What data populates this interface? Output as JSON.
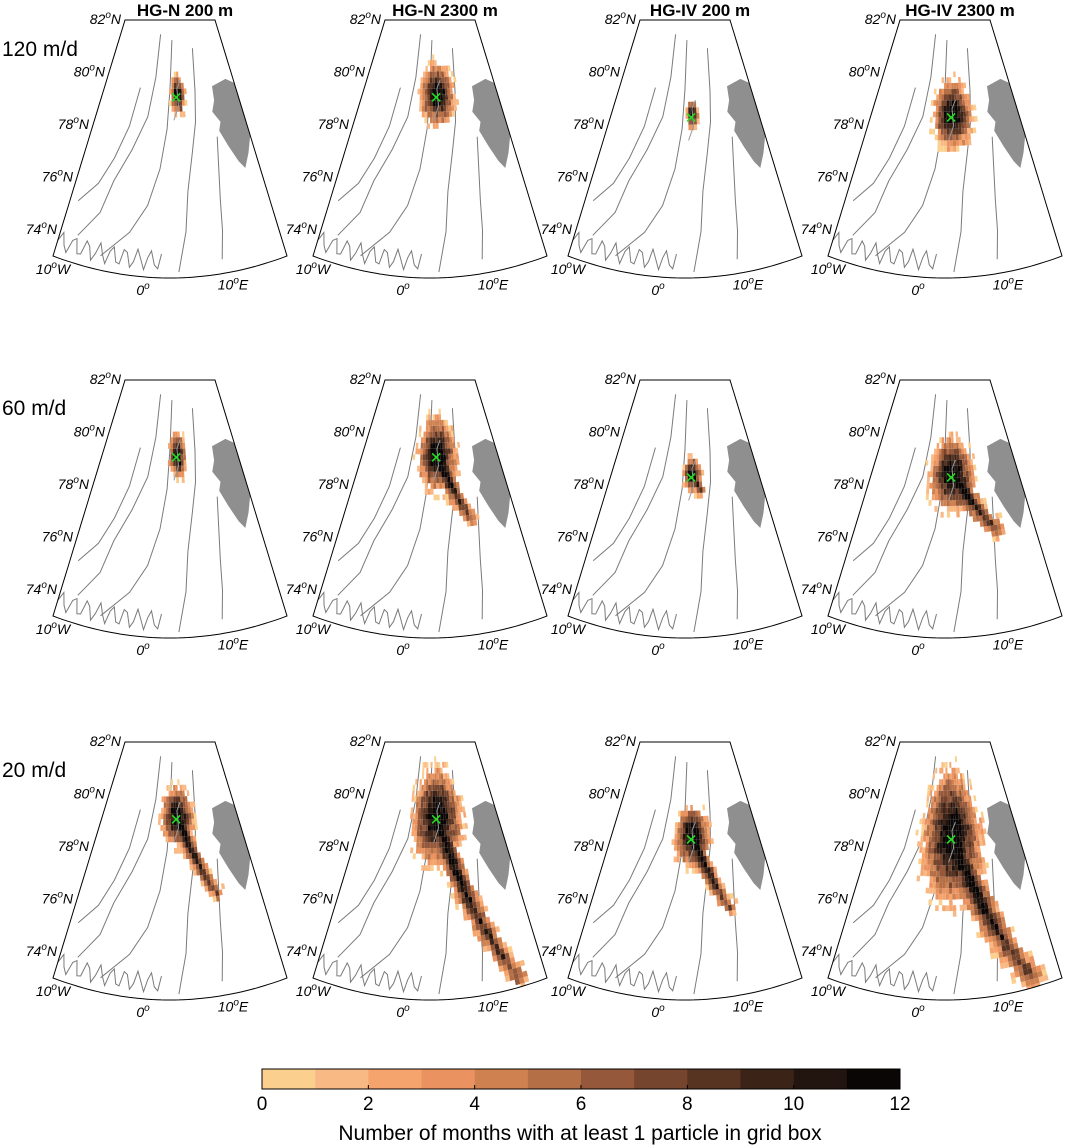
{
  "chart_data": {
    "type": "heatmap",
    "description_text": {
      "columns": [
        "HG-N 200 m",
        "HG-N 2300 m",
        "HG-IV 200 m",
        "HG-IV 2300 m"
      ],
      "rows": [
        "120 m/d",
        "60 m/d",
        "20 m/d"
      ]
    },
    "map_ticks": {
      "lat": [
        "82",
        "80",
        "78",
        "76",
        "74"
      ],
      "lat_suffix": "N",
      "lon": [
        "10",
        "0",
        "10"
      ],
      "lon_suffix": [
        "W",
        "",
        "E"
      ],
      "degree": "o"
    },
    "extent": {
      "lon": [
        -10,
        16
      ],
      "lat": [
        73,
        82
      ]
    },
    "release_sites": {
      "HG-N": {
        "lon": 4.2,
        "lat": 79.3
      },
      "HG-IV": {
        "lon": 4.1,
        "lat": 78.6
      }
    },
    "colorbar": {
      "ticks": [
        "0",
        "2",
        "4",
        "6",
        "8",
        "10",
        "12"
      ],
      "range": [
        0,
        12
      ],
      "label": "Number of months with at least 1 particle in grid box",
      "colors": [
        "#fbd08f",
        "#f9b985",
        "#f6a46e",
        "#ea9360",
        "#cf8150",
        "#b56f46",
        "#95583a",
        "#75452d",
        "#573322",
        "#3c2318",
        "#22140e",
        "#0a0605"
      ]
    },
    "panels": [
      {
        "site": "HG-N",
        "depth": "200 m",
        "speed": "120 m/d",
        "spread": {
          "dlon": 1.4,
          "dlat": 0.6,
          "tail_lon": 0.6,
          "tail_lat": -0.5
        }
      },
      {
        "site": "HG-N",
        "depth": "2300 m",
        "speed": "120 m/d",
        "spread": {
          "dlon": 3.2,
          "dlat": 1.0,
          "tail_lon": 1.5,
          "tail_lat": -0.7
        }
      },
      {
        "site": "HG-IV",
        "depth": "200 m",
        "speed": "120 m/d",
        "spread": {
          "dlon": 1.0,
          "dlat": 0.45,
          "tail_lon": 0.2,
          "tail_lat": -0.2
        }
      },
      {
        "site": "HG-IV",
        "depth": "2300 m",
        "speed": "120 m/d",
        "spread": {
          "dlon": 3.3,
          "dlat": 1.1,
          "tail_lon": 1.0,
          "tail_lat": -0.7
        }
      },
      {
        "site": "HG-N",
        "depth": "200 m",
        "speed": "60 m/d",
        "spread": {
          "dlon": 1.6,
          "dlat": 0.7,
          "tail_lon": 0.7,
          "tail_lat": -0.6
        }
      },
      {
        "site": "HG-N",
        "depth": "2300 m",
        "speed": "60 m/d",
        "spread": {
          "dlon": 3.6,
          "dlat": 1.2,
          "tail_lon": 4.8,
          "tail_lat": -2.3
        }
      },
      {
        "site": "HG-IV",
        "depth": "200 m",
        "speed": "60 m/d",
        "spread": {
          "dlon": 1.6,
          "dlat": 0.55,
          "tail_lon": 1.5,
          "tail_lat": -0.6
        }
      },
      {
        "site": "HG-IV",
        "depth": "2300 m",
        "speed": "60 m/d",
        "spread": {
          "dlon": 3.8,
          "dlat": 1.2,
          "tail_lon": 6.2,
          "tail_lat": -2.0
        }
      },
      {
        "site": "HG-N",
        "depth": "200 m",
        "speed": "20 m/d",
        "spread": {
          "dlon": 3.0,
          "dlat": 1.0,
          "tail_lon": 5.5,
          "tail_lat": -2.8
        }
      },
      {
        "site": "HG-N",
        "depth": "2300 m",
        "speed": "20 m/d",
        "spread": {
          "dlon": 4.6,
          "dlat": 1.6,
          "tail_lon": 8.5,
          "tail_lat": -6.0
        }
      },
      {
        "site": "HG-IV",
        "depth": "200 m",
        "speed": "20 m/d",
        "spread": {
          "dlon": 3.0,
          "dlat": 1.0,
          "tail_lon": 5.0,
          "tail_lat": -2.6
        }
      },
      {
        "site": "HG-IV",
        "depth": "2300 m",
        "speed": "20 m/d",
        "spread": {
          "dlon": 5.0,
          "dlat": 2.2,
          "tail_lon": 8.6,
          "tail_lat": -5.3
        }
      }
    ]
  }
}
